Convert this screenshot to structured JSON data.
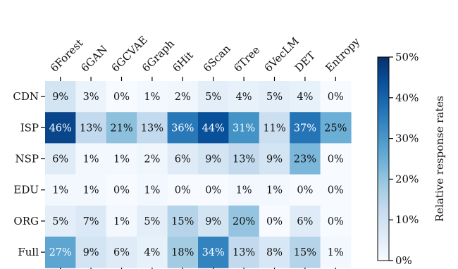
{
  "chart_data": {
    "type": "heatmap",
    "title": "",
    "columns": [
      "6Forest",
      "6GAN",
      "6GCVAE",
      "6Graph",
      "6Hit",
      "6Scan",
      "6Tree",
      "6VecLM",
      "DET",
      "Entropy"
    ],
    "rows": [
      "CDN",
      "ISP",
      "NSP",
      "EDU",
      "ORG",
      "Full"
    ],
    "values": [
      [
        9,
        3,
        0,
        1,
        2,
        5,
        4,
        5,
        4,
        0
      ],
      [
        46,
        13,
        21,
        13,
        36,
        44,
        31,
        11,
        37,
        25
      ],
      [
        6,
        1,
        1,
        2,
        6,
        9,
        13,
        9,
        23,
        0
      ],
      [
        1,
        1,
        0,
        1,
        0,
        0,
        1,
        1,
        0,
        0
      ],
      [
        5,
        7,
        1,
        5,
        15,
        9,
        20,
        0,
        6,
        0
      ],
      [
        27,
        9,
        6,
        4,
        18,
        34,
        13,
        8,
        15,
        1
      ]
    ],
    "cell_labels": [
      [
        "9%",
        "3%",
        "0%",
        "1%",
        "2%",
        "5%",
        "4%",
        "5%",
        "4%",
        "0%"
      ],
      [
        "46%",
        "13%",
        "21%",
        "13%",
        "36%",
        "44%",
        "31%",
        "11%",
        "37%",
        "25%"
      ],
      [
        "6%",
        "1%",
        "1%",
        "2%",
        "6%",
        "9%",
        "13%",
        "9%",
        "23%",
        "0%"
      ],
      [
        "1%",
        "1%",
        "0%",
        "1%",
        "0%",
        "0%",
        "1%",
        "1%",
        "0%",
        "0%"
      ],
      [
        "5%",
        "7%",
        "1%",
        "5%",
        "15%",
        "9%",
        "20%",
        "0%",
        "6%",
        "0%"
      ],
      [
        "27%",
        "9%",
        "6%",
        "4%",
        "18%",
        "34%",
        "13%",
        "8%",
        "15%",
        "1%"
      ]
    ],
    "colorbar": {
      "label": "Relative response rates",
      "range": [
        0,
        50
      ],
      "ticks": [
        0,
        10,
        20,
        30,
        40,
        50
      ],
      "tick_labels": [
        "0%",
        "10%",
        "20%",
        "30%",
        "40%",
        "50%"
      ],
      "colormap": "Blues",
      "low_color": "#f7fbff",
      "high_color": "#08306b"
    },
    "grid": false
  }
}
